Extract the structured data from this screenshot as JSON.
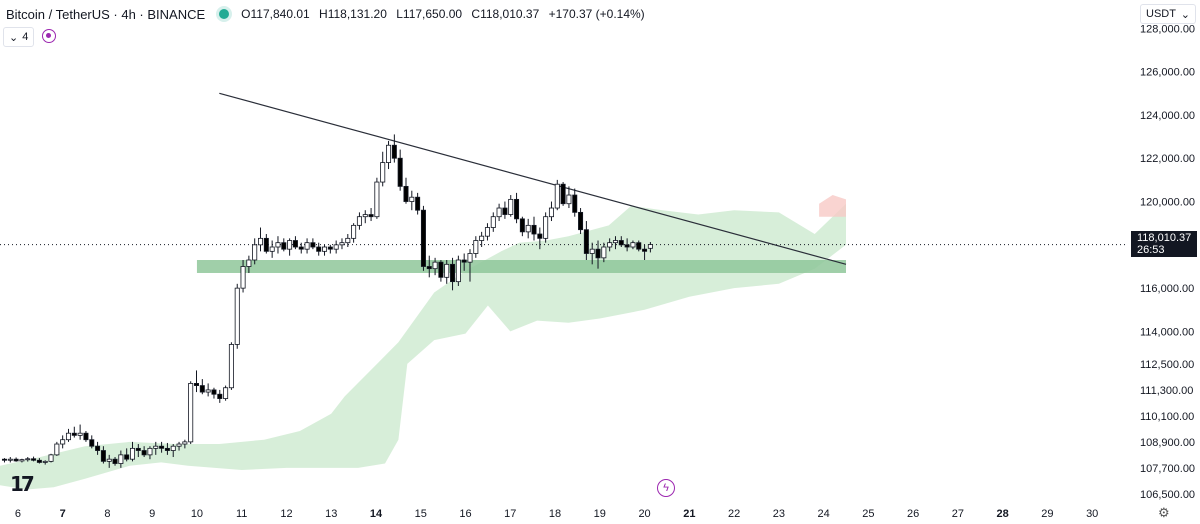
{
  "header": {
    "symbol": "Bitcoin / TetherUS · 4h · BINANCE",
    "open_label": "O",
    "open": "117,840.01",
    "high_label": "H",
    "high": "118,131.20",
    "low_label": "L",
    "low": "117,650.00",
    "close_label": "C",
    "close": "118,010.37",
    "change": "+170.37 (+0.14%)"
  },
  "indicator": {
    "label": "4",
    "chevron": "chevron-down-icon"
  },
  "currency": "USDT",
  "current_price": {
    "price": "118,010.37",
    "countdown": "26:53"
  },
  "colors": {
    "bull": "#ffffff",
    "bear": "#000000",
    "wick": "#131722",
    "zone": "#8fc79a",
    "cloud": "#c9e8cc",
    "cloud_red": "#f8c9c6",
    "trend": "#2a2e39"
  },
  "chart_data": {
    "type": "candlestick",
    "ylim": [
      106400,
      128200
    ],
    "y_ticks": [
      {
        "v": 128000,
        "label": "128,000.00"
      },
      {
        "v": 126000,
        "label": "126,000.00"
      },
      {
        "v": 124000,
        "label": "124,000.00"
      },
      {
        "v": 122000,
        "label": "122,000.00"
      },
      {
        "v": 120000,
        "label": "120,000.00"
      },
      {
        "v": 116000,
        "label": "116,000.00"
      },
      {
        "v": 114000,
        "label": "114,000.00"
      },
      {
        "v": 112500,
        "label": "112,500.00"
      },
      {
        "v": 111300,
        "label": "111,300.00"
      },
      {
        "v": 110100,
        "label": "110,100.00"
      },
      {
        "v": 108900,
        "label": "108,900.00"
      },
      {
        "v": 107700,
        "label": "107,700.00"
      },
      {
        "v": 106500,
        "label": "106,500.00"
      }
    ],
    "x_range": [
      5.6,
      30.8
    ],
    "x_ticks": [
      {
        "v": 6,
        "label": "6",
        "bold": false
      },
      {
        "v": 7,
        "label": "7",
        "bold": true
      },
      {
        "v": 8,
        "label": "8",
        "bold": false
      },
      {
        "v": 9,
        "label": "9",
        "bold": false
      },
      {
        "v": 10,
        "label": "10",
        "bold": false
      },
      {
        "v": 11,
        "label": "11",
        "bold": false
      },
      {
        "v": 12,
        "label": "12",
        "bold": false
      },
      {
        "v": 13,
        "label": "13",
        "bold": false
      },
      {
        "v": 14,
        "label": "14",
        "bold": true
      },
      {
        "v": 15,
        "label": "15",
        "bold": false
      },
      {
        "v": 16,
        "label": "16",
        "bold": false
      },
      {
        "v": 17,
        "label": "17",
        "bold": false
      },
      {
        "v": 18,
        "label": "18",
        "bold": false
      },
      {
        "v": 19,
        "label": "19",
        "bold": false
      },
      {
        "v": 20,
        "label": "20",
        "bold": false
      },
      {
        "v": 21,
        "label": "21",
        "bold": true
      },
      {
        "v": 22,
        "label": "22",
        "bold": false
      },
      {
        "v": 23,
        "label": "23",
        "bold": false
      },
      {
        "v": 24,
        "label": "24",
        "bold": false
      },
      {
        "v": 25,
        "label": "25",
        "bold": false
      },
      {
        "v": 26,
        "label": "26",
        "bold": false
      },
      {
        "v": 27,
        "label": "27",
        "bold": false
      },
      {
        "v": 28,
        "label": "28",
        "bold": true
      },
      {
        "v": 29,
        "label": "29",
        "bold": false
      },
      {
        "v": 30,
        "label": "30",
        "bold": false
      }
    ],
    "candles": [
      [
        5.7,
        108100,
        108150,
        107950,
        108050
      ],
      [
        5.83,
        108050,
        108200,
        107950,
        108100
      ],
      [
        5.96,
        108100,
        108180,
        107980,
        108020
      ],
      [
        6.09,
        108020,
        108120,
        107950,
        108080
      ],
      [
        6.22,
        108080,
        108200,
        107990,
        108120
      ],
      [
        6.35,
        108120,
        108220,
        108000,
        108050
      ],
      [
        6.48,
        108050,
        108150,
        107900,
        107950
      ],
      [
        6.61,
        107950,
        108050,
        107850,
        108000
      ],
      [
        6.74,
        108000,
        108350,
        107950,
        108300
      ],
      [
        6.87,
        108300,
        108900,
        108250,
        108800
      ],
      [
        7.0,
        108800,
        109200,
        108600,
        109000
      ],
      [
        7.13,
        109000,
        109500,
        108900,
        109300
      ],
      [
        7.26,
        109300,
        109600,
        109100,
        109200
      ],
      [
        7.39,
        109200,
        109700,
        109000,
        109300
      ],
      [
        7.52,
        109300,
        109400,
        108900,
        109000
      ],
      [
        7.65,
        109000,
        109200,
        108600,
        108700
      ],
      [
        7.78,
        108700,
        108900,
        108300,
        108500
      ],
      [
        7.91,
        108500,
        108700,
        107900,
        108000
      ],
      [
        8.04,
        108000,
        108300,
        107700,
        108100
      ],
      [
        8.17,
        108100,
        108200,
        107800,
        107900
      ],
      [
        8.3,
        107900,
        108500,
        107700,
        108300
      ],
      [
        8.43,
        108300,
        108600,
        108000,
        108100
      ],
      [
        8.56,
        108100,
        108900,
        108000,
        108600
      ],
      [
        8.69,
        108600,
        108800,
        108200,
        108500
      ],
      [
        8.82,
        108500,
        108700,
        108200,
        108300
      ],
      [
        8.95,
        108300,
        108700,
        108100,
        108600
      ],
      [
        9.08,
        108600,
        108900,
        108300,
        108700
      ],
      [
        9.21,
        108700,
        108900,
        108400,
        108600
      ],
      [
        9.34,
        108600,
        108850,
        108300,
        108500
      ],
      [
        9.47,
        108500,
        108800,
        108200,
        108700
      ],
      [
        9.6,
        108700,
        108900,
        108500,
        108800
      ],
      [
        9.73,
        108800,
        109000,
        108600,
        108900
      ],
      [
        9.86,
        108900,
        111700,
        108800,
        111600
      ],
      [
        9.99,
        111600,
        112200,
        111200,
        111500
      ],
      [
        10.12,
        111500,
        111800,
        111100,
        111200
      ],
      [
        10.25,
        111200,
        111600,
        111000,
        111300
      ],
      [
        10.38,
        111300,
        111400,
        110900,
        111100
      ],
      [
        10.51,
        111100,
        111300,
        110700,
        110900
      ],
      [
        10.64,
        110900,
        111500,
        110800,
        111400
      ],
      [
        10.77,
        111400,
        113500,
        111300,
        113400
      ],
      [
        10.9,
        113400,
        116200,
        113200,
        116000
      ],
      [
        11.03,
        116000,
        117300,
        115800,
        117000
      ],
      [
        11.16,
        117000,
        117500,
        116700,
        117300
      ],
      [
        11.29,
        117300,
        118300,
        117100,
        118000
      ],
      [
        11.42,
        118000,
        118800,
        117700,
        118300
      ],
      [
        11.55,
        118300,
        118500,
        117600,
        117700
      ],
      [
        11.68,
        117700,
        118200,
        117400,
        117900
      ],
      [
        11.81,
        117900,
        118400,
        117600,
        118100
      ],
      [
        11.94,
        118100,
        118300,
        117700,
        117800
      ],
      [
        12.07,
        117800,
        118300,
        117500,
        118200
      ],
      [
        12.2,
        118200,
        118400,
        117800,
        117900
      ],
      [
        12.33,
        117900,
        118100,
        117600,
        117800
      ],
      [
        12.46,
        117800,
        118300,
        117600,
        118100
      ],
      [
        12.59,
        118100,
        118300,
        117800,
        117900
      ],
      [
        12.72,
        117900,
        118100,
        117500,
        117700
      ],
      [
        12.85,
        117700,
        118000,
        117500,
        117900
      ],
      [
        12.98,
        117900,
        118000,
        117600,
        117800
      ],
      [
        13.11,
        117800,
        118200,
        117600,
        118000
      ],
      [
        13.24,
        118000,
        118300,
        117800,
        118100
      ],
      [
        13.37,
        118100,
        118500,
        117900,
        118300
      ],
      [
        13.5,
        118300,
        119000,
        118100,
        118900
      ],
      [
        13.63,
        118900,
        119500,
        118700,
        119300
      ],
      [
        13.76,
        119300,
        119600,
        119000,
        119400
      ],
      [
        13.89,
        119400,
        119700,
        119100,
        119300
      ],
      [
        14.02,
        119300,
        121100,
        119200,
        120900
      ],
      [
        14.15,
        120900,
        122300,
        120700,
        121800
      ],
      [
        14.28,
        121800,
        122800,
        121500,
        122600
      ],
      [
        14.41,
        122600,
        123100,
        121800,
        122000
      ],
      [
        14.54,
        122000,
        122400,
        120500,
        120700
      ],
      [
        14.67,
        120700,
        121100,
        119900,
        120000
      ],
      [
        14.8,
        120000,
        120500,
        119600,
        120200
      ],
      [
        14.93,
        120200,
        120400,
        119400,
        119600
      ],
      [
        15.06,
        119600,
        119800,
        116800,
        117000
      ],
      [
        15.19,
        117000,
        117500,
        116500,
        116900
      ],
      [
        15.32,
        116900,
        117400,
        116600,
        117200
      ],
      [
        15.45,
        117200,
        117300,
        116300,
        116500
      ],
      [
        15.58,
        116500,
        117300,
        116200,
        117100
      ],
      [
        15.71,
        117100,
        117400,
        115900,
        116300
      ],
      [
        15.84,
        116300,
        117500,
        116100,
        117300
      ],
      [
        15.97,
        117300,
        117600,
        116800,
        117200
      ],
      [
        16.1,
        117200,
        117800,
        116300,
        117600
      ],
      [
        16.23,
        117600,
        118400,
        117400,
        118200
      ],
      [
        16.36,
        118200,
        118600,
        117900,
        118400
      ],
      [
        16.49,
        118400,
        119000,
        118200,
        118800
      ],
      [
        16.62,
        118800,
        119500,
        118600,
        119300
      ],
      [
        16.75,
        119300,
        119900,
        119100,
        119700
      ],
      [
        16.88,
        119700,
        120000,
        119200,
        119400
      ],
      [
        17.01,
        119400,
        120300,
        119300,
        120100
      ],
      [
        17.14,
        120100,
        120400,
        119000,
        119200
      ],
      [
        17.27,
        119200,
        119300,
        118400,
        118600
      ],
      [
        17.4,
        118600,
        119200,
        118300,
        118900
      ],
      [
        17.53,
        118900,
        119300,
        118200,
        118500
      ],
      [
        17.66,
        118500,
        118800,
        117800,
        118300
      ],
      [
        17.79,
        118300,
        119500,
        118100,
        119300
      ],
      [
        17.92,
        119300,
        120000,
        119100,
        119700
      ],
      [
        18.05,
        119700,
        121000,
        119600,
        120800
      ],
      [
        18.18,
        120800,
        120900,
        119800,
        119900
      ],
      [
        18.31,
        119900,
        120700,
        119700,
        120300
      ],
      [
        18.44,
        120300,
        120600,
        119300,
        119500
      ],
      [
        18.57,
        119500,
        119700,
        118500,
        118700
      ],
      [
        18.7,
        118700,
        119100,
        117300,
        117600
      ],
      [
        18.83,
        117600,
        118100,
        117100,
        117800
      ],
      [
        18.96,
        117800,
        118200,
        116900,
        117400
      ],
      [
        19.09,
        117400,
        118100,
        117200,
        117900
      ],
      [
        19.22,
        117900,
        118300,
        117700,
        118100
      ],
      [
        19.35,
        118100,
        118400,
        117800,
        118200
      ],
      [
        19.48,
        118200,
        118400,
        117900,
        118000
      ],
      [
        19.61,
        118000,
        118300,
        117700,
        117900
      ],
      [
        19.74,
        117900,
        118200,
        117800,
        118100
      ],
      [
        19.87,
        118100,
        118200,
        117700,
        117800
      ],
      [
        20.0,
        117800,
        118000,
        117300,
        117700
      ],
      [
        20.13,
        117840,
        118131,
        117650,
        118010
      ]
    ],
    "support_zone": {
      "x0": 10.0,
      "x1": 24.5,
      "y0": 116700,
      "y1": 117300
    },
    "trendline": [
      [
        10.5,
        125000
      ],
      [
        24.5,
        117100
      ]
    ],
    "cloud_upper": [
      [
        5.6,
        107800
      ],
      [
        6.5,
        108200
      ],
      [
        7.5,
        108700
      ],
      [
        8.5,
        108900
      ],
      [
        9.5,
        108800
      ],
      [
        10.5,
        108800
      ],
      [
        11.5,
        109000
      ],
      [
        12.3,
        109400
      ],
      [
        13.0,
        110200
      ],
      [
        13.3,
        111000
      ],
      [
        14.5,
        113500
      ],
      [
        15.3,
        115800
      ],
      [
        16.0,
        116800
      ],
      [
        16.8,
        117700
      ],
      [
        17.2,
        118100
      ],
      [
        17.8,
        118200
      ],
      [
        18.3,
        118400
      ],
      [
        19.2,
        118900
      ],
      [
        19.7,
        119800
      ],
      [
        20.4,
        119600
      ],
      [
        21.2,
        119400
      ],
      [
        22.0,
        119600
      ],
      [
        23.0,
        119500
      ],
      [
        23.8,
        118500
      ],
      [
        24.5,
        119900
      ]
    ],
    "cloud_lower": [
      [
        24.5,
        118000
      ],
      [
        23.8,
        116900
      ],
      [
        23.0,
        116200
      ],
      [
        22.0,
        116000
      ],
      [
        21.0,
        115600
      ],
      [
        20.0,
        115000
      ],
      [
        19.0,
        114600
      ],
      [
        18.3,
        114400
      ],
      [
        17.6,
        114500
      ],
      [
        17.0,
        114000
      ],
      [
        16.5,
        115200
      ],
      [
        16.0,
        113900
      ],
      [
        15.3,
        113600
      ],
      [
        14.7,
        112500
      ],
      [
        14.5,
        109000
      ],
      [
        14.2,
        107900
      ],
      [
        13.6,
        107700
      ],
      [
        12.0,
        107700
      ],
      [
        11.0,
        107600
      ],
      [
        10.4,
        107700
      ],
      [
        9.8,
        107800
      ],
      [
        9.2,
        107950
      ],
      [
        8.5,
        107800
      ],
      [
        7.5,
        107200
      ],
      [
        6.8,
        106800
      ],
      [
        6.2,
        106700
      ],
      [
        5.6,
        106900
      ]
    ],
    "cloud_red": [
      [
        23.9,
        119300
      ],
      [
        24.5,
        119300
      ],
      [
        24.5,
        120100
      ],
      [
        24.2,
        120300
      ],
      [
        23.9,
        119900
      ]
    ],
    "last_price": 118010.37
  }
}
